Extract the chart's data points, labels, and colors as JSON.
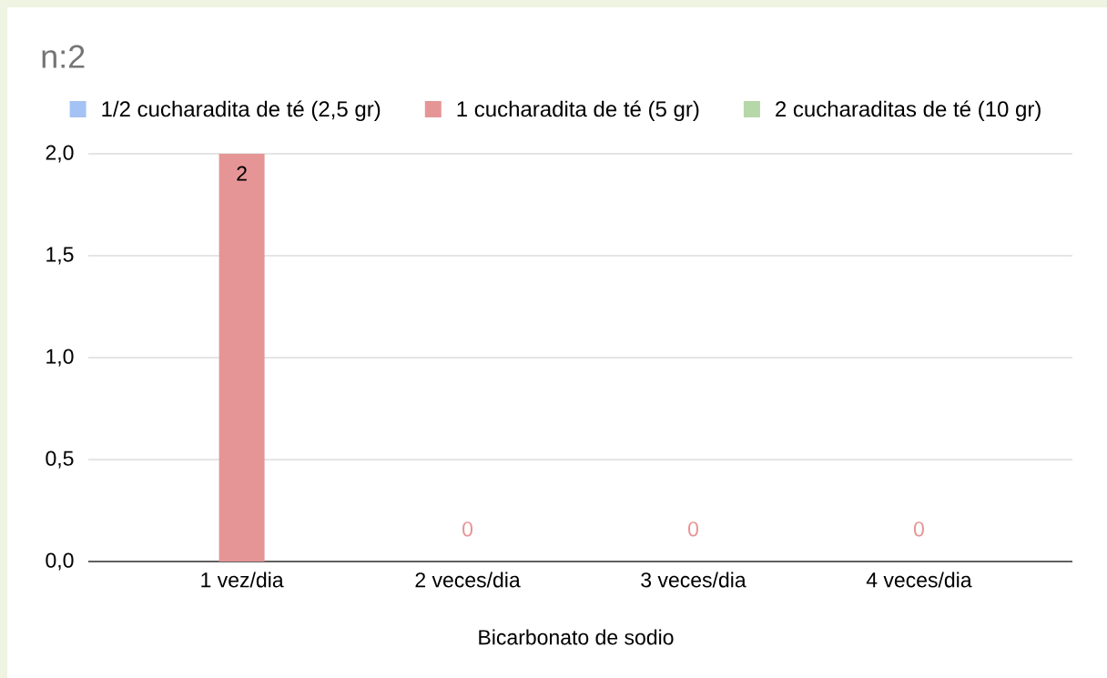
{
  "chart_data": {
    "type": "bar",
    "title": "n:2",
    "xlabel": "Bicarbonato de sodio",
    "categories": [
      "1 vez/dia",
      "2 veces/dia",
      "3 veces/dia",
      "4 veces/dia"
    ],
    "series": [
      {
        "name": "1/2 cucharadita de té (2,5 gr)",
        "color": "#a4c2f4",
        "values": [
          null,
          null,
          null,
          null
        ]
      },
      {
        "name": "1 cucharadita de té (5 gr)",
        "color": "#e69596",
        "values": [
          2,
          0,
          0,
          0
        ]
      },
      {
        "name": "2 cucharaditas de té (10 gr)",
        "color": "#b6d7a8",
        "values": [
          null,
          null,
          null,
          null
        ]
      }
    ],
    "ylim": [
      0,
      2
    ],
    "yticks": [
      {
        "value": 0,
        "label": "0,0"
      },
      {
        "value": 0.5,
        "label": "0,5"
      },
      {
        "value": 1,
        "label": "1,0"
      },
      {
        "value": 1.5,
        "label": "1,5"
      },
      {
        "value": 2,
        "label": "2,0"
      }
    ],
    "grid": "y",
    "legend": "top",
    "data_labels": true
  }
}
